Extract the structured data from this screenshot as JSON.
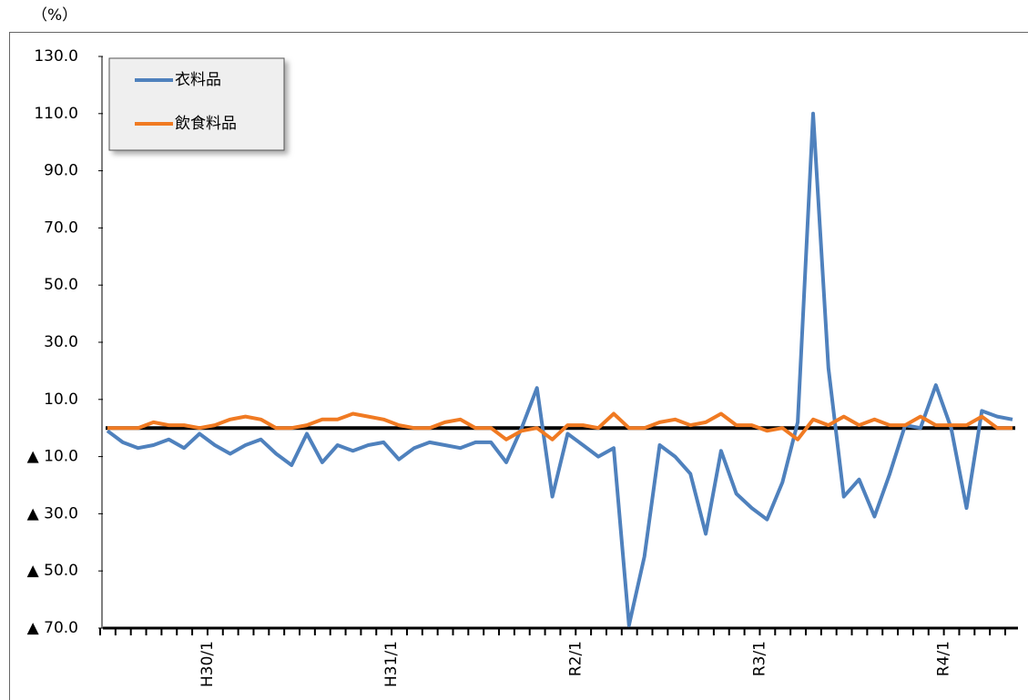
{
  "chart_data": {
    "type": "line",
    "y_label": "（%）",
    "categories": [
      null,
      null,
      null,
      null,
      null,
      null,
      null,
      "H30/1",
      null,
      null,
      null,
      null,
      null,
      null,
      null,
      null,
      null,
      null,
      null,
      "H31/1",
      null,
      null,
      null,
      null,
      null,
      null,
      null,
      null,
      null,
      null,
      null,
      "R2/1",
      null,
      null,
      null,
      null,
      null,
      null,
      null,
      null,
      null,
      null,
      null,
      "R3/1",
      null,
      null,
      null,
      null,
      null,
      null,
      null,
      null,
      null,
      null,
      null,
      "R4/1",
      null,
      null,
      null,
      null
    ],
    "series": [
      {
        "name": "衣料品",
        "color": "#4f81bd",
        "values": [
          -1,
          -5,
          -7,
          -6,
          -4,
          -7,
          -2,
          -6,
          -9,
          -6,
          -4,
          -9,
          -13,
          -2,
          -12,
          -6,
          -8,
          -6,
          -5,
          -11,
          -7,
          -5,
          -6,
          -7,
          -5,
          -5,
          -12,
          0,
          14,
          -24,
          -2,
          -6,
          -10,
          -7,
          -69,
          -45,
          -6,
          -10,
          -16,
          -37,
          -8,
          -23,
          -28,
          -32,
          -19,
          2,
          110,
          21,
          -24,
          -18,
          -31,
          -16,
          1,
          0,
          15,
          0,
          -28,
          6,
          4,
          3
        ]
      },
      {
        "name": "飲食料品",
        "color": "#f07a22",
        "values": [
          0,
          0,
          0,
          2,
          1,
          1,
          0,
          1,
          3,
          4,
          3,
          0,
          0,
          1,
          3,
          3,
          5,
          4,
          3,
          1,
          0,
          0,
          2,
          3,
          0,
          0,
          -4,
          -1,
          0,
          -4,
          1,
          1,
          0,
          5,
          0,
          0,
          2,
          3,
          1,
          2,
          5,
          1,
          1,
          -1,
          0,
          -4,
          3,
          1,
          4,
          1,
          3,
          1,
          1,
          4,
          1,
          1,
          1,
          4,
          0,
          0
        ]
      }
    ],
    "ylim": [
      -70,
      130
    ],
    "yticks": [
      {
        "value": -70,
        "label": "▲ 70.0"
      },
      {
        "value": -50,
        "label": "▲ 50.0"
      },
      {
        "value": -30,
        "label": "▲ 30.0"
      },
      {
        "value": -10,
        "label": "▲ 10.0"
      },
      {
        "value": 10,
        "label": "10.0"
      },
      {
        "value": 30,
        "label": "30.0"
      },
      {
        "value": 50,
        "label": "50.0"
      },
      {
        "value": 70,
        "label": "70.0"
      },
      {
        "value": 90,
        "label": "90.0"
      },
      {
        "value": 110,
        "label": "110.0"
      },
      {
        "value": 130,
        "label": "130.0"
      }
    ],
    "legend": "top-left"
  }
}
